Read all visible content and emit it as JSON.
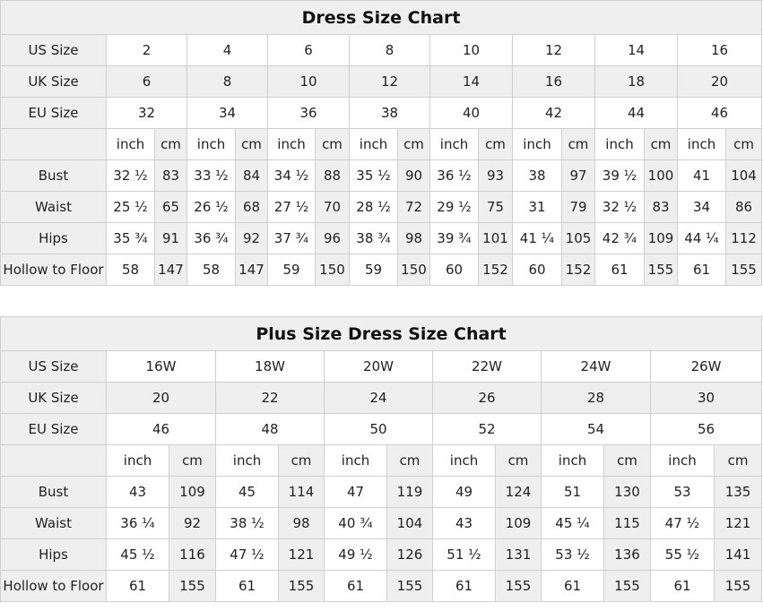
{
  "standard": {
    "title": "Dress Size Chart",
    "header_rows": [
      {
        "label": "US Size",
        "values": [
          "2",
          "4",
          "6",
          "8",
          "10",
          "12",
          "14",
          "16"
        ]
      },
      {
        "label": "UK Size",
        "values": [
          "6",
          "8",
          "10",
          "12",
          "14",
          "16",
          "18",
          "20"
        ]
      },
      {
        "label": "EU Size",
        "values": [
          "32",
          "34",
          "36",
          "38",
          "40",
          "42",
          "44",
          "46"
        ]
      }
    ],
    "unit_labels": [
      "inch",
      "cm"
    ],
    "measure_rows": [
      {
        "label": "Bust",
        "values": [
          [
            "32 ½",
            "83"
          ],
          [
            "33 ½",
            "84"
          ],
          [
            "34 ½",
            "88"
          ],
          [
            "35 ½",
            "90"
          ],
          [
            "36 ½",
            "93"
          ],
          [
            "38",
            "97"
          ],
          [
            "39 ½",
            "100"
          ],
          [
            "41",
            "104"
          ]
        ]
      },
      {
        "label": "Waist",
        "values": [
          [
            "25 ½",
            "65"
          ],
          [
            "26 ½",
            "68"
          ],
          [
            "27 ½",
            "70"
          ],
          [
            "28 ½",
            "72"
          ],
          [
            "29 ½",
            "75"
          ],
          [
            "31",
            "79"
          ],
          [
            "32 ½",
            "83"
          ],
          [
            "34",
            "86"
          ]
        ]
      },
      {
        "label": "Hips",
        "values": [
          [
            "35 ¾",
            "91"
          ],
          [
            "36 ¾",
            "92"
          ],
          [
            "37 ¾",
            "96"
          ],
          [
            "38 ¾",
            "98"
          ],
          [
            "39 ¾",
            "101"
          ],
          [
            "41 ¼",
            "105"
          ],
          [
            "42 ¾",
            "109"
          ],
          [
            "44 ¼",
            "112"
          ]
        ]
      },
      {
        "label": "Hollow to Floor",
        "values": [
          [
            "58",
            "147"
          ],
          [
            "58",
            "147"
          ],
          [
            "59",
            "150"
          ],
          [
            "59",
            "150"
          ],
          [
            "60",
            "152"
          ],
          [
            "60",
            "152"
          ],
          [
            "61",
            "155"
          ],
          [
            "61",
            "155"
          ]
        ]
      }
    ]
  },
  "plus": {
    "title": "Plus Size Dress Size Chart",
    "header_rows": [
      {
        "label": "US Size",
        "values": [
          "16W",
          "18W",
          "20W",
          "22W",
          "24W",
          "26W"
        ]
      },
      {
        "label": "UK Size",
        "values": [
          "20",
          "22",
          "24",
          "26",
          "28",
          "30"
        ]
      },
      {
        "label": "EU Size",
        "values": [
          "46",
          "48",
          "50",
          "52",
          "54",
          "56"
        ]
      }
    ],
    "unit_labels": [
      "inch",
      "cm"
    ],
    "measure_rows": [
      {
        "label": "Bust",
        "values": [
          [
            "43",
            "109"
          ],
          [
            "45",
            "114"
          ],
          [
            "47",
            "119"
          ],
          [
            "49",
            "124"
          ],
          [
            "51",
            "130"
          ],
          [
            "53",
            "135"
          ]
        ]
      },
      {
        "label": "Waist",
        "values": [
          [
            "36 ¼",
            "92"
          ],
          [
            "38 ½",
            "98"
          ],
          [
            "40 ¾",
            "104"
          ],
          [
            "43",
            "109"
          ],
          [
            "45 ¼",
            "115"
          ],
          [
            "47 ½",
            "121"
          ]
        ]
      },
      {
        "label": "Hips",
        "values": [
          [
            "45 ½",
            "116"
          ],
          [
            "47 ½",
            "121"
          ],
          [
            "49 ½",
            "126"
          ],
          [
            "51 ½",
            "131"
          ],
          [
            "53 ½",
            "136"
          ],
          [
            "55 ½",
            "141"
          ]
        ]
      },
      {
        "label": "Hollow to Floor",
        "values": [
          [
            "61",
            "155"
          ],
          [
            "61",
            "155"
          ],
          [
            "61",
            "155"
          ],
          [
            "61",
            "155"
          ],
          [
            "61",
            "155"
          ],
          [
            "61",
            "155"
          ]
        ]
      }
    ]
  }
}
